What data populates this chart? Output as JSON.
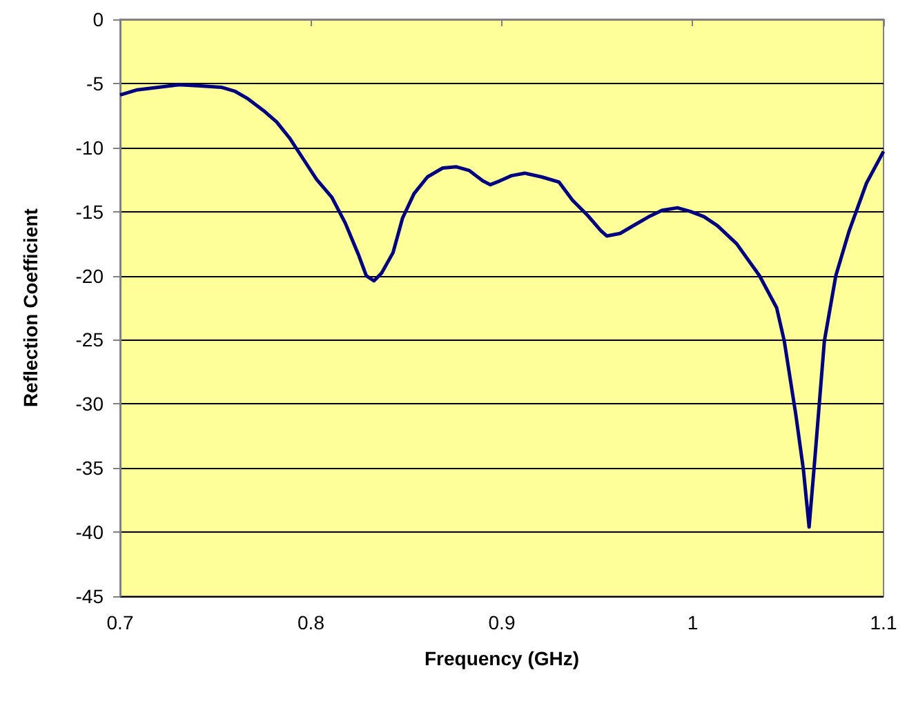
{
  "chart_data": {
    "type": "line",
    "xlabel": "Frequency (GHz)",
    "ylabel": "Reflection Coefficient",
    "x": [
      0.7,
      0.709,
      0.72,
      0.731,
      0.742,
      0.753,
      0.76,
      0.767,
      0.775,
      0.782,
      0.789,
      0.796,
      0.803,
      0.811,
      0.818,
      0.825,
      0.829,
      0.833,
      0.837,
      0.843,
      0.848,
      0.854,
      0.861,
      0.869,
      0.876,
      0.883,
      0.89,
      0.894,
      0.899,
      0.905,
      0.912,
      0.921,
      0.93,
      0.937,
      0.945,
      0.952,
      0.955,
      0.962,
      0.97,
      0.977,
      0.984,
      0.992,
      0.999,
      1.006,
      1.013,
      1.023,
      1.035,
      1.044,
      1.048,
      1.054,
      1.058,
      1.061,
      1.064,
      1.069,
      1.075,
      1.082,
      1.091,
      1.1
    ],
    "series": [
      {
        "color": "#000080",
        "values": [
          -5.9,
          -5.5,
          -5.3,
          -5.1,
          -5.2,
          -5.3,
          -5.6,
          -6.2,
          -7.1,
          -8.0,
          -9.3,
          -10.9,
          -12.5,
          -13.9,
          -15.9,
          -18.4,
          -20.0,
          -20.4,
          -19.8,
          -18.2,
          -15.5,
          -13.6,
          -12.3,
          -11.6,
          -11.5,
          -11.8,
          -12.6,
          -12.9,
          -12.6,
          -12.2,
          -12.0,
          -12.3,
          -12.7,
          -14.1,
          -15.3,
          -16.5,
          -16.9,
          -16.7,
          -16.0,
          -15.4,
          -14.9,
          -14.7,
          -15.0,
          -15.4,
          -16.1,
          -17.5,
          -20.0,
          -22.5,
          -25.1,
          -30.8,
          -35.1,
          -39.6,
          -34.3,
          -25.1,
          -20.0,
          -16.5,
          -12.8,
          -10.3
        ]
      }
    ],
    "xlim": [
      0.7,
      1.1
    ],
    "xticks": [
      0.7,
      0.8,
      0.9,
      1,
      1.1
    ],
    "ylim": [
      -45,
      0
    ],
    "yticks": [
      -45,
      -40,
      -35,
      -30,
      -25,
      -20,
      -15,
      -10,
      -5,
      0
    ],
    "grid": "y",
    "marker": "none",
    "line_style": "solid"
  }
}
